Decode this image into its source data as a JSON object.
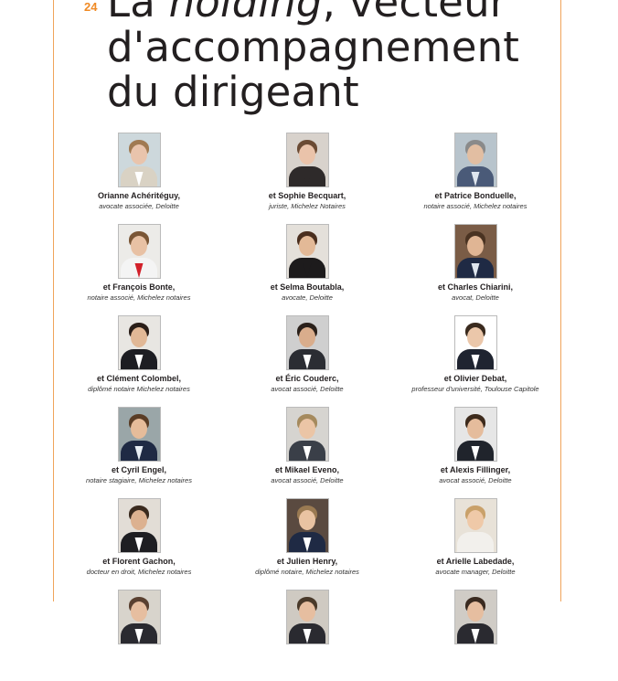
{
  "page": {
    "number": "24",
    "title_line1_prefix": "La ",
    "title_line1_italic": "holding",
    "title_line1_suffix": ", vecteur",
    "title_line2": "d'accompagnement",
    "title_line3": "du dirigeant"
  },
  "colors": {
    "accent": "#f08a24",
    "frame": "#f0a45a",
    "text": "#231f20"
  },
  "authors": [
    {
      "name": "Orianne Achéritéguy,",
      "role": "avocate associée, Deloitte",
      "photo": {
        "bg": "#cdd8dc",
        "skin": "#e9c4ac",
        "hair": "#a07a52",
        "suit": "#d9d2c4",
        "shirt": "#ffffff"
      }
    },
    {
      "name": "et Sophie Becquart,",
      "role": "juriste, Michelez Notaires",
      "photo": {
        "bg": "#d8d2cc",
        "skin": "#eac3aa",
        "hair": "#6b4b34",
        "suit": "#2e2a2a",
        "shirt": "#2e2a2a"
      }
    },
    {
      "name": "et Patrice Bonduelle,",
      "role": "notaire associé, Michelez notaires",
      "photo": {
        "bg": "#b8c4cc",
        "skin": "#e2bea2",
        "hair": "#8a8a8a",
        "suit": "#4a5a78",
        "shirt": "#dfe6ee"
      }
    },
    {
      "name": "et François Bonte,",
      "role": "notaire associé, Michelez notaires",
      "photo": {
        "bg": "#ecebe8",
        "skin": "#e8c1a4",
        "hair": "#7a5636",
        "suit": "#f4f4f4",
        "shirt": "#d2202a"
      }
    },
    {
      "name": "et Selma Boutabla,",
      "role": "avocate, Deloitte",
      "photo": {
        "bg": "#e4e0da",
        "skin": "#e3b997",
        "hair": "#4a2e1e",
        "suit": "#1d1b1c",
        "shirt": "#1d1b1c"
      }
    },
    {
      "name": "et Charles Chiarini,",
      "role": "avocat, Deloitte",
      "photo": {
        "bg": "#7a5c46",
        "skin": "#e0b594",
        "hair": "#4a3322",
        "suit": "#1f2a44",
        "shirt": "#dfe6ee"
      }
    },
    {
      "name": "et Clément Colombel,",
      "role": "diplômé notaire Michelez notaires",
      "photo": {
        "bg": "#e8e6e2",
        "skin": "#e1b896",
        "hair": "#2a1e18",
        "suit": "#1d1d22",
        "shirt": "#ffffff"
      }
    },
    {
      "name": "et Éric Couderc,",
      "role": "avocat associé, Deloitte",
      "photo": {
        "bg": "#cfcfcf",
        "skin": "#d9ad8c",
        "hair": "#2a201a",
        "suit": "#2b2d33",
        "shirt": "#ffffff"
      }
    },
    {
      "name": "et Olivier Debat,",
      "role": "professeur d'université, Toulouse Capitole",
      "photo": {
        "bg": "#ffffff",
        "skin": "#ebc7aa",
        "hair": "#3a2a1e",
        "suit": "#1f2430",
        "shirt": "#ffffff"
      }
    },
    {
      "name": "et Cyril Engel,",
      "role": "notaire stagiaire, Michelez notaires",
      "photo": {
        "bg": "#9aa6a8",
        "skin": "#e6bc9a",
        "hair": "#5a3d26",
        "suit": "#1f2a44",
        "shirt": "#e8eef4"
      }
    },
    {
      "name": "et Mikael Eveno,",
      "role": "avocat associé, Deloitte",
      "photo": {
        "bg": "#d6d4d0",
        "skin": "#ebc5a6",
        "hair": "#a58a5e",
        "suit": "#3a3f48",
        "shirt": "#ffffff"
      }
    },
    {
      "name": "et Alexis Fillinger,",
      "role": "avocat associé, Deloitte",
      "photo": {
        "bg": "#e6e6e6",
        "skin": "#e5bc9c",
        "hair": "#3d2a1c",
        "suit": "#20242c",
        "shirt": "#ffffff"
      }
    },
    {
      "name": "et Florent Gachon,",
      "role": "docteur en droit, Michelez notaires",
      "photo": {
        "bg": "#e2ddd6",
        "skin": "#dcb190",
        "hair": "#3a2a1e",
        "suit": "#1e1e22",
        "shirt": "#ffffff"
      }
    },
    {
      "name": "et Julien Henry,",
      "role": "diplômé notaire, Michelez notaires",
      "photo": {
        "bg": "#5a4a40",
        "skin": "#e9c3a2",
        "hair": "#9a7a52",
        "suit": "#1f2a44",
        "shirt": "#ffffff"
      }
    },
    {
      "name": "et Arielle Labedade,",
      "role": "avocate manager, Deloitte",
      "photo": {
        "bg": "#e8e2d8",
        "skin": "#efc9a8",
        "hair": "#c9a16a",
        "suit": "#f2f0ec",
        "shirt": "#f2f0ec"
      }
    },
    {
      "name": "",
      "role": "",
      "photo": {
        "bg": "#d8d4cc",
        "skin": "#e6bea0",
        "hair": "#5a4030",
        "suit": "#2a2a30",
        "shirt": "#ffffff"
      }
    },
    {
      "name": "",
      "role": "",
      "photo": {
        "bg": "#cfcac2",
        "skin": "#e6bea0",
        "hair": "#4a3a2a",
        "suit": "#2a2a30",
        "shirt": "#ffffff"
      }
    },
    {
      "name": "",
      "role": "",
      "photo": {
        "bg": "#d0ccc6",
        "skin": "#e6bea0",
        "hair": "#3a2a20",
        "suit": "#2a2a30",
        "shirt": "#ffffff"
      }
    }
  ]
}
